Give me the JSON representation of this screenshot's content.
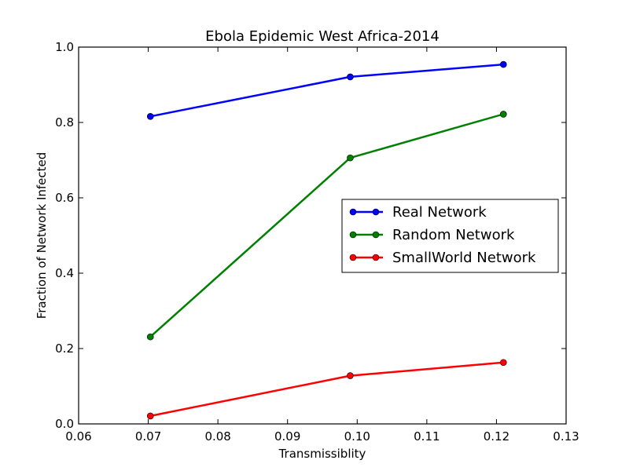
{
  "chart_data": {
    "type": "line",
    "title": "Ebola Epidemic West Africa-2014",
    "xlabel": "Transmissiblity",
    "ylabel": "Fraction of Network Infected",
    "xlim": [
      0.06,
      0.13
    ],
    "ylim": [
      0.0,
      1.0
    ],
    "xticks": [
      "0.06",
      "0.07",
      "0.08",
      "0.09",
      "0.10",
      "0.11",
      "0.12",
      "0.13"
    ],
    "yticks": [
      "0.0",
      "0.2",
      "0.4",
      "0.6",
      "0.8",
      "1.0"
    ],
    "legend_position": "center-right",
    "grid": false,
    "series": [
      {
        "name": "Real Network",
        "color": "#0000ff",
        "x": [
          0.0703,
          0.099,
          0.121
        ],
        "y": [
          0.816,
          0.921,
          0.954
        ]
      },
      {
        "name": "Random Network",
        "color": "#008000",
        "x": [
          0.0703,
          0.099,
          0.121
        ],
        "y": [
          0.231,
          0.706,
          0.822
        ]
      },
      {
        "name": "SmallWorld Network",
        "color": "#ff0000",
        "x": [
          0.0703,
          0.099,
          0.121
        ],
        "y": [
          0.021,
          0.128,
          0.163
        ]
      }
    ]
  }
}
